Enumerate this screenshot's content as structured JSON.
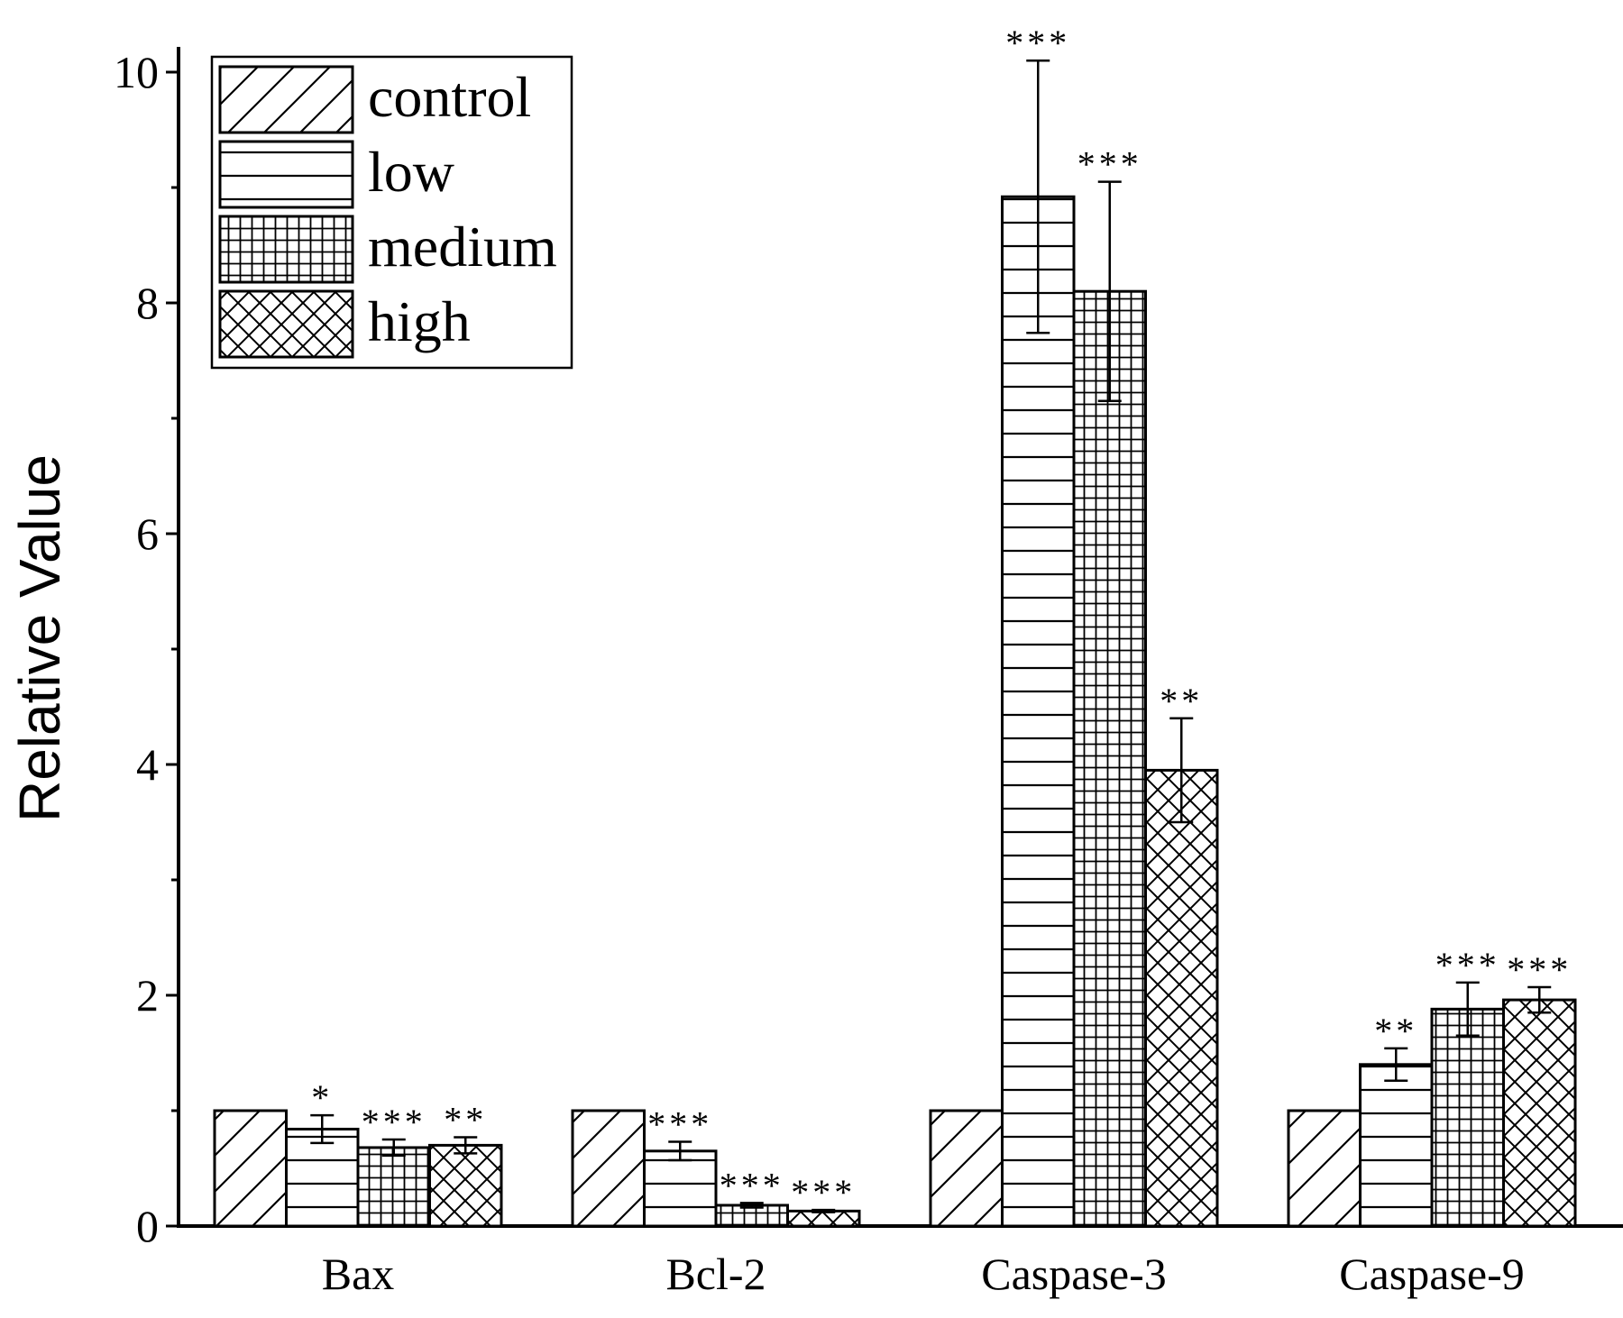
{
  "chart_data": {
    "type": "bar",
    "title": "",
    "xlabel": "",
    "ylabel": "Relative Value",
    "ylim": [
      0,
      10
    ],
    "yticks": [
      0,
      2,
      4,
      6,
      8,
      10
    ],
    "ytick_labels": [
      "0",
      "2",
      "4",
      "6",
      "8",
      "10"
    ],
    "categories": [
      "Bax",
      "Bcl-2",
      "Caspase-3",
      "Caspase-9"
    ],
    "series": [
      {
        "name": "control",
        "pattern": "diagonal",
        "values": [
          1.0,
          1.0,
          1.0,
          1.0
        ],
        "errors": [
          0,
          0,
          0,
          0
        ],
        "significance": [
          "",
          "",
          "",
          ""
        ]
      },
      {
        "name": "low",
        "pattern": "horizontal",
        "values": [
          0.84,
          0.65,
          8.92,
          1.4
        ],
        "errors": [
          0.12,
          0.08,
          1.18,
          0.14
        ],
        "significance": [
          "*",
          "***",
          "***",
          "**"
        ]
      },
      {
        "name": "medium",
        "pattern": "grid",
        "values": [
          0.68,
          0.18,
          8.1,
          1.88
        ],
        "errors": [
          0.07,
          0.02,
          0.95,
          0.23
        ],
        "significance": [
          "***",
          "***",
          "***",
          "***"
        ]
      },
      {
        "name": "high",
        "pattern": "crosshatch",
        "values": [
          0.7,
          0.13,
          3.95,
          1.96
        ],
        "errors": [
          0.07,
          0.01,
          0.45,
          0.11
        ],
        "significance": [
          "**",
          "***",
          "**",
          "***"
        ]
      }
    ],
    "legend_position": "top-left",
    "grid": false
  }
}
